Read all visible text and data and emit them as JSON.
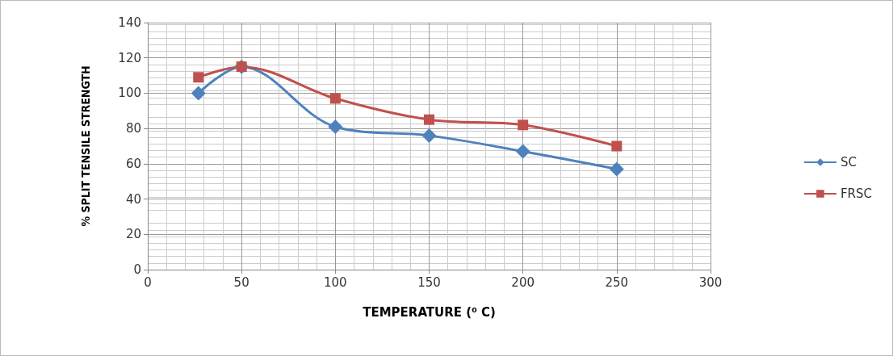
{
  "chart_data": {
    "type": "line",
    "xlabel": "TEMPERATURE (⁰ C)",
    "ylabel": "% SPLIT TENSILE STRENGTH",
    "xlim": [
      0,
      300
    ],
    "xticks": [
      0,
      50,
      100,
      150,
      200,
      250,
      300
    ],
    "ylim": [
      0,
      140
    ],
    "yticks": [
      0,
      20,
      40,
      60,
      80,
      100,
      120,
      140
    ],
    "grid": true,
    "legend": "right",
    "series": [
      {
        "name": "SC",
        "color": "#4f81bd",
        "marker": "diamond",
        "x": [
          27,
          50,
          100,
          150,
          200,
          250
        ],
        "values": [
          100,
          115,
          81,
          76,
          67,
          57
        ]
      },
      {
        "name": "FRSC",
        "color": "#c0504d",
        "marker": "square",
        "x": [
          27,
          50,
          100,
          150,
          200,
          250
        ],
        "values": [
          109,
          115,
          97,
          85,
          82,
          70
        ]
      }
    ]
  }
}
